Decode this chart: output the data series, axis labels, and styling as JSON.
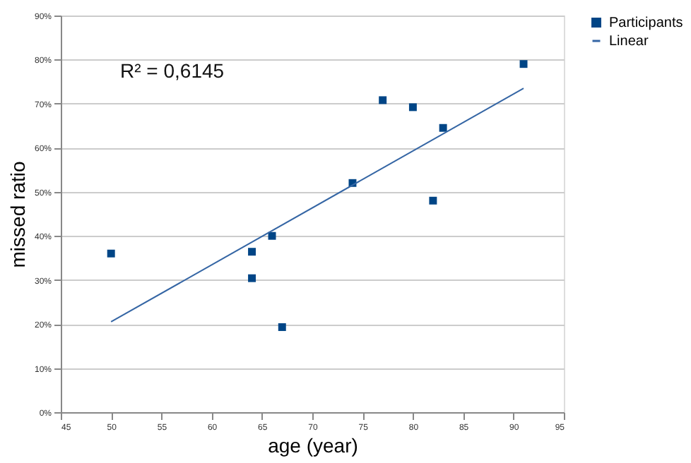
{
  "chart_data": {
    "type": "scatter",
    "xlabel": "age (year)",
    "ylabel": "missed ratio",
    "xlim": [
      45,
      95
    ],
    "xticks": [
      45,
      50,
      55,
      60,
      65,
      70,
      75,
      80,
      85,
      90,
      95
    ],
    "ylim": [
      0,
      90
    ],
    "yticks": [
      {
        "value": 0,
        "label": "0%"
      },
      {
        "value": 10,
        "label": "10%"
      },
      {
        "value": 20,
        "label": "20%"
      },
      {
        "value": 30,
        "label": "30%"
      },
      {
        "value": 40,
        "label": "40%"
      },
      {
        "value": 50,
        "label": "50%"
      },
      {
        "value": 60,
        "label": "60%"
      },
      {
        "value": 70,
        "label": "70%"
      },
      {
        "value": 80,
        "label": "80%"
      },
      {
        "value": 90,
        "label": "90%"
      }
    ],
    "grid": "y",
    "legend": "right",
    "annotations": [
      "R² = 0,6145"
    ],
    "series": [
      {
        "name": "Participants",
        "marker": "square",
        "color": "#004586",
        "x": [
          50,
          64,
          64,
          66,
          67,
          74,
          77,
          80,
          82,
          83,
          91
        ],
        "values": [
          36,
          36.4,
          30.4,
          40,
          19.3,
          52,
          70.8,
          69.2,
          48,
          64.5,
          79
        ]
      },
      {
        "name": "Linear",
        "type": "line",
        "color": "#3465a4",
        "x": [
          50,
          91
        ],
        "values": [
          20.5,
          73.5
        ]
      }
    ]
  }
}
